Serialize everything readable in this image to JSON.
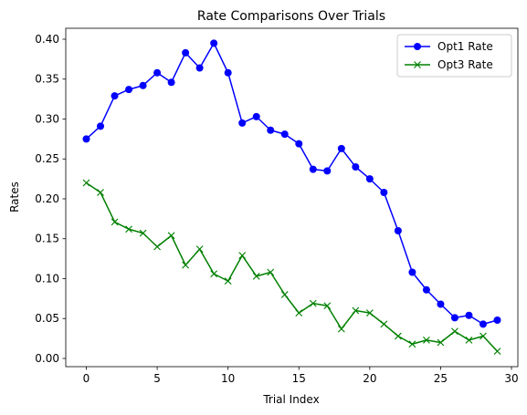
{
  "chart_data": {
    "type": "line",
    "title": "Rate Comparisons Over Trials",
    "xlabel": "Trial Index",
    "ylabel": "Rates",
    "xlim": [
      -1.45,
      30.45
    ],
    "ylim": [
      -0.0103,
      0.4137
    ],
    "xticks": [
      0,
      5,
      10,
      15,
      20,
      25,
      30
    ],
    "yticks": [
      0.0,
      0.05,
      0.1,
      0.15,
      0.2,
      0.25,
      0.3,
      0.35,
      0.4
    ],
    "xtick_labels": [
      "0",
      "5",
      "10",
      "15",
      "20",
      "25",
      "30"
    ],
    "ytick_labels": [
      "0.00",
      "0.05",
      "0.10",
      "0.15",
      "0.20",
      "0.25",
      "0.30",
      "0.35",
      "0.40"
    ],
    "grid": false,
    "legend_position": "top-right",
    "x": [
      0,
      1,
      2,
      3,
      4,
      5,
      6,
      7,
      8,
      9,
      10,
      11,
      12,
      13,
      14,
      15,
      16,
      17,
      18,
      19,
      20,
      21,
      22,
      23,
      24,
      25,
      26,
      27,
      28,
      29
    ],
    "series": [
      {
        "name": "Opt1 Rate",
        "color": "#0000ff",
        "marker": "circle",
        "values": [
          0.275,
          0.291,
          0.329,
          0.337,
          0.342,
          0.358,
          0.346,
          0.383,
          0.364,
          0.395,
          0.358,
          0.295,
          0.303,
          0.286,
          0.281,
          0.269,
          0.237,
          0.235,
          0.263,
          0.24,
          0.225,
          0.208,
          0.16,
          0.108,
          0.086,
          0.068,
          0.051,
          0.054,
          0.043,
          0.048
        ]
      },
      {
        "name": "Opt3 Rate",
        "color": "#008000",
        "marker": "x",
        "values": [
          0.22,
          0.208,
          0.171,
          0.162,
          0.157,
          0.14,
          0.154,
          0.117,
          0.137,
          0.106,
          0.097,
          0.129,
          0.103,
          0.108,
          0.08,
          0.057,
          0.069,
          0.066,
          0.037,
          0.06,
          0.057,
          0.043,
          0.028,
          0.018,
          0.023,
          0.02,
          0.034,
          0.023,
          0.028,
          0.009
        ]
      }
    ]
  }
}
